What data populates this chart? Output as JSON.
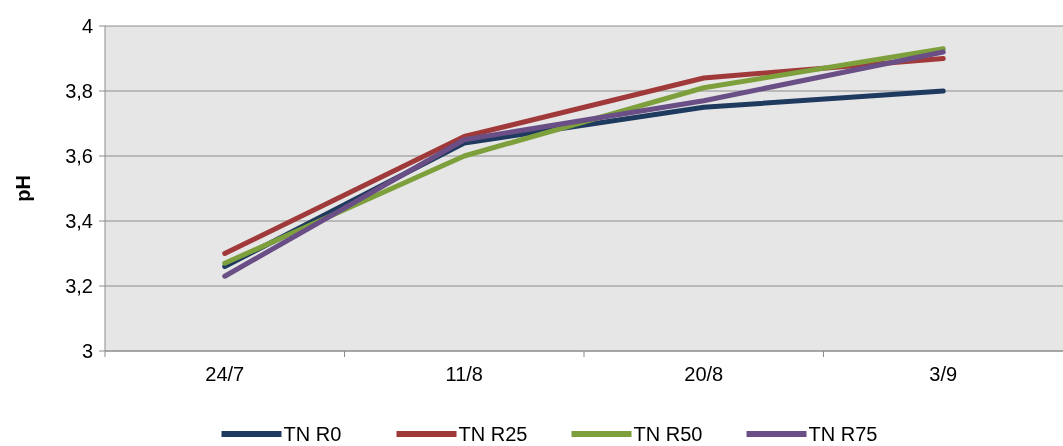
{
  "chart_data": {
    "type": "line",
    "ylabel": "pH",
    "categories": [
      "24/7",
      "11/8",
      "20/8",
      "3/9"
    ],
    "series": [
      {
        "name": "TN R0",
        "color": "#1f3a5f",
        "values": [
          3.26,
          3.64,
          3.75,
          3.8
        ]
      },
      {
        "name": "TN R25",
        "color": "#a0393a",
        "values": [
          3.3,
          3.66,
          3.84,
          3.9
        ]
      },
      {
        "name": "TN R50",
        "color": "#7da03c",
        "values": [
          3.27,
          3.6,
          3.81,
          3.93
        ]
      },
      {
        "name": "TN R75",
        "color": "#6a4f86",
        "values": [
          3.23,
          3.65,
          3.77,
          3.92
        ]
      }
    ],
    "ylim": [
      3,
      4
    ],
    "yticks": [
      {
        "value": 3,
        "label": "3"
      },
      {
        "value": 3.2,
        "label": "3,2"
      },
      {
        "value": 3.4,
        "label": "3,4"
      },
      {
        "value": 3.6,
        "label": "3,6"
      },
      {
        "value": 3.8,
        "label": "3,8"
      },
      {
        "value": 4,
        "label": "4"
      }
    ],
    "grid": "y",
    "legend": "bottom",
    "line_style": "solid"
  }
}
